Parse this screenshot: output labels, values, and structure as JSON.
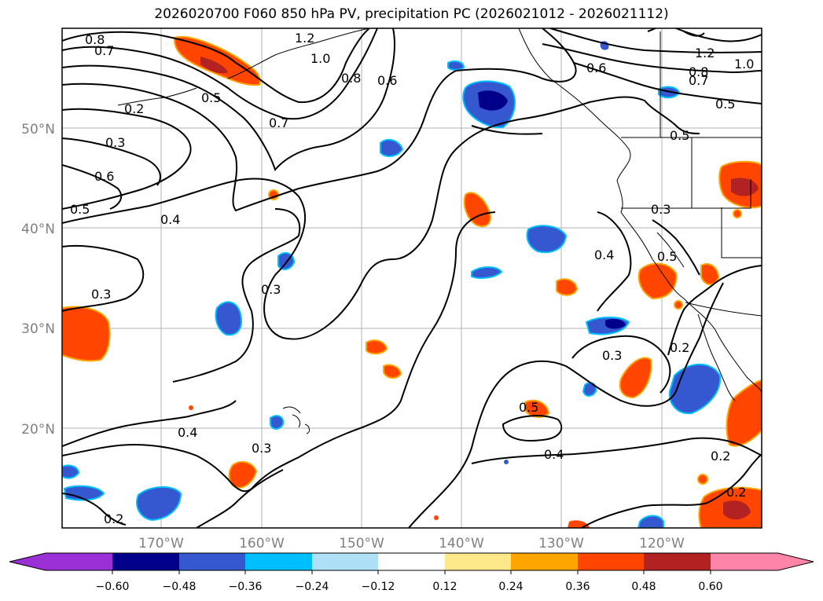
{
  "title": "2026020700 F060 850 hPa PV, precipitation PC (2026021012 - 2026021112)",
  "map": {
    "lat_labels": [
      "50°N",
      "40°N",
      "30°N",
      "20°N"
    ],
    "lon_labels": [
      "170°W",
      "160°W",
      "150°W",
      "140°W",
      "130°W",
      "120°W"
    ],
    "contour_labels": [
      "0.8",
      "0.7",
      "1.2",
      "1.0",
      "0.2",
      "0.5",
      "0.8",
      "0.6",
      "0.7",
      "0.6",
      "1.2",
      "1.0",
      "0.8",
      "0.7",
      "0.5",
      "0.3",
      "0.6",
      "0.5",
      "0.5",
      "0.4",
      "0.4",
      "0.3",
      "0.3",
      "0.3",
      "0.5",
      "0.3",
      "0.2",
      "0.4",
      "0.3",
      "0.5",
      "0.4",
      "0.2",
      "0.2",
      "0.2"
    ]
  },
  "colorbar": {
    "colors": [
      "#9b30d6",
      "#00008b",
      "#3557d0",
      "#00bfff",
      "#aee0f8",
      "#ffffff",
      "#fde98a",
      "#ffa500",
      "#ff4500",
      "#b22222",
      "#ff85a8"
    ],
    "ticks": [
      "−0.60",
      "−0.48",
      "−0.36",
      "−0.24",
      "−0.12",
      "0.12",
      "0.24",
      "0.36",
      "0.48",
      "0.60"
    ]
  }
}
